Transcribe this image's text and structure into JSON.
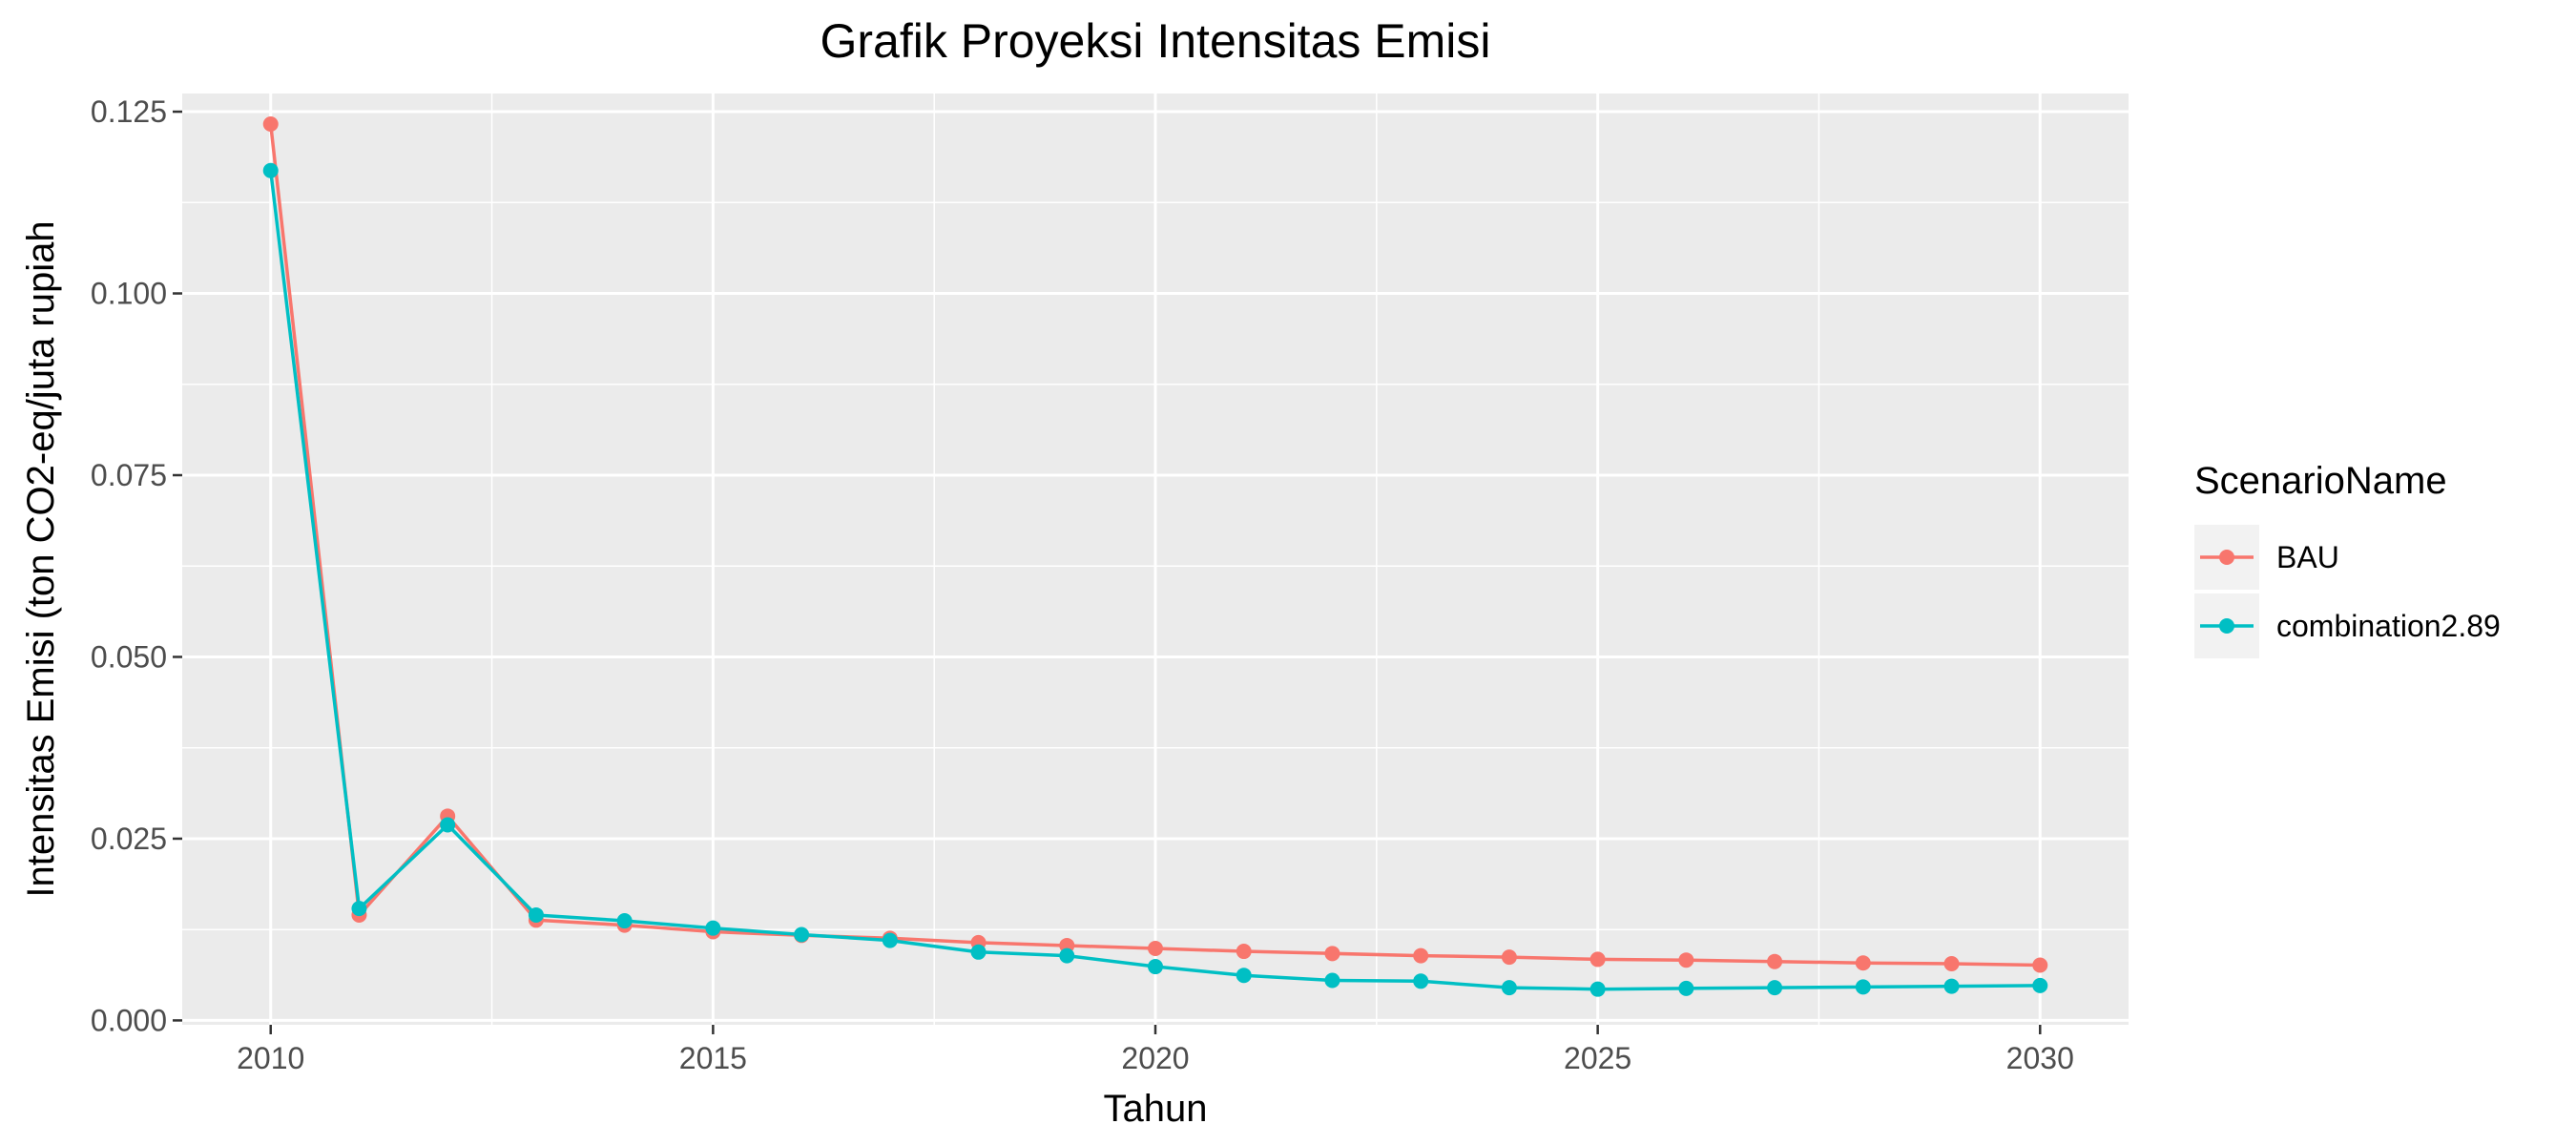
{
  "chart_data": {
    "type": "line",
    "title": "Grafik Proyeksi Intensitas Emisi",
    "xlabel": "Tahun",
    "ylabel": "Intensitas Emisi (ton CO2-eq/juta rupiah",
    "xlim": [
      2009,
      2031
    ],
    "ylim": [
      -0.0006,
      0.1275
    ],
    "x_ticks": [
      2010,
      2015,
      2020,
      2025,
      2030
    ],
    "y_ticks": [
      0,
      0.025,
      0.05,
      0.075,
      0.1,
      0.125
    ],
    "y_tick_labels": [
      "0.000",
      "0.025",
      "0.050",
      "0.075",
      "0.100",
      "0.125"
    ],
    "grid": true,
    "legend": {
      "title": "ScenarioName",
      "position": "right"
    },
    "x": [
      2010,
      2011,
      2012,
      2013,
      2014,
      2015,
      2016,
      2017,
      2018,
      2019,
      2020,
      2021,
      2022,
      2023,
      2024,
      2025,
      2026,
      2027,
      2028,
      2029,
      2030
    ],
    "series": [
      {
        "name": "BAU",
        "color": "#F8766D",
        "values": [
          0.1233,
          0.0145,
          0.0281,
          0.0138,
          0.0131,
          0.0122,
          0.0117,
          0.0113,
          0.0107,
          0.0103,
          0.0099,
          0.0095,
          0.0092,
          0.0089,
          0.0087,
          0.0084,
          0.0083,
          0.0081,
          0.0079,
          0.0078,
          0.0076
        ]
      },
      {
        "name": "combination2.89",
        "color": "#00BFC4",
        "values": [
          0.1169,
          0.0154,
          0.0269,
          0.0145,
          0.0137,
          0.0127,
          0.0118,
          0.011,
          0.0094,
          0.0089,
          0.0074,
          0.0062,
          0.0055,
          0.0054,
          0.0045,
          0.0043,
          0.0044,
          0.0045,
          0.0046,
          0.0047,
          0.0048
        ]
      }
    ]
  }
}
